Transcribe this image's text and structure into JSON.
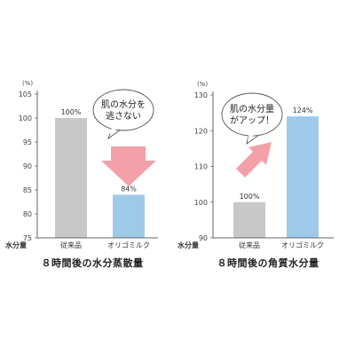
{
  "chart_data": [
    {
      "type": "bar",
      "title": "８時間後の水分蒸散量",
      "unit": "(%)",
      "ylabel": "水分量",
      "ylim": [
        75,
        105
      ],
      "yticks": [
        75,
        80,
        85,
        90,
        95,
        100,
        105
      ],
      "categories": [
        "従来品",
        "オリゴミルク"
      ],
      "values": [
        100,
        84
      ],
      "data_labels": [
        "100%",
        "84%"
      ],
      "colors": [
        "#c8c8c8",
        "#9fc9e8"
      ],
      "callout": "肌の水分を\n逃さない",
      "arrow": "down",
      "arrow_color": "#f4a0a8",
      "grid": false
    },
    {
      "type": "bar",
      "title": "８時間後の角質水分量",
      "unit": "(%)",
      "ylabel": "水分量",
      "ylim": [
        90,
        130
      ],
      "yticks": [
        90,
        100,
        110,
        120,
        130
      ],
      "categories": [
        "従来品",
        "オリゴミルク"
      ],
      "values": [
        100,
        124
      ],
      "data_labels": [
        "100%",
        "124%"
      ],
      "colors": [
        "#c8c8c8",
        "#9fc9e8"
      ],
      "callout": "肌の水分量\nがアップ！",
      "arrow": "up-right",
      "arrow_color": "#f4a0a8",
      "grid": false
    }
  ]
}
